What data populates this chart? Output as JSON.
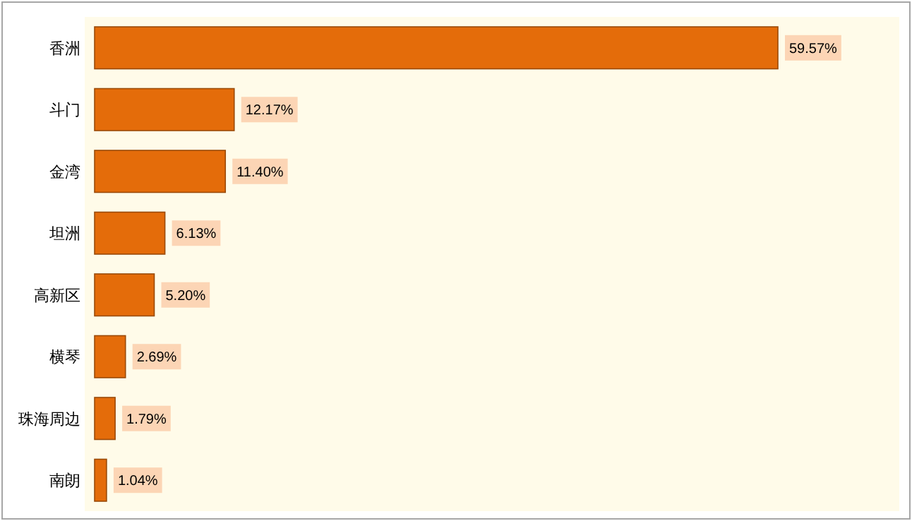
{
  "chart_data": {
    "type": "bar",
    "orientation": "horizontal",
    "categories": [
      "香洲",
      "斗门",
      "金湾",
      "坦洲",
      "高新区",
      "横琴",
      "珠海周边",
      "南朗"
    ],
    "values": [
      59.57,
      12.17,
      11.4,
      6.13,
      5.2,
      2.69,
      1.79,
      1.04
    ],
    "value_labels": [
      "59.57%",
      "12.17%",
      "11.40%",
      "6.13%",
      "5.20%",
      "2.69%",
      "1.79%",
      "1.04%"
    ],
    "color": "#e46c0a"
  }
}
